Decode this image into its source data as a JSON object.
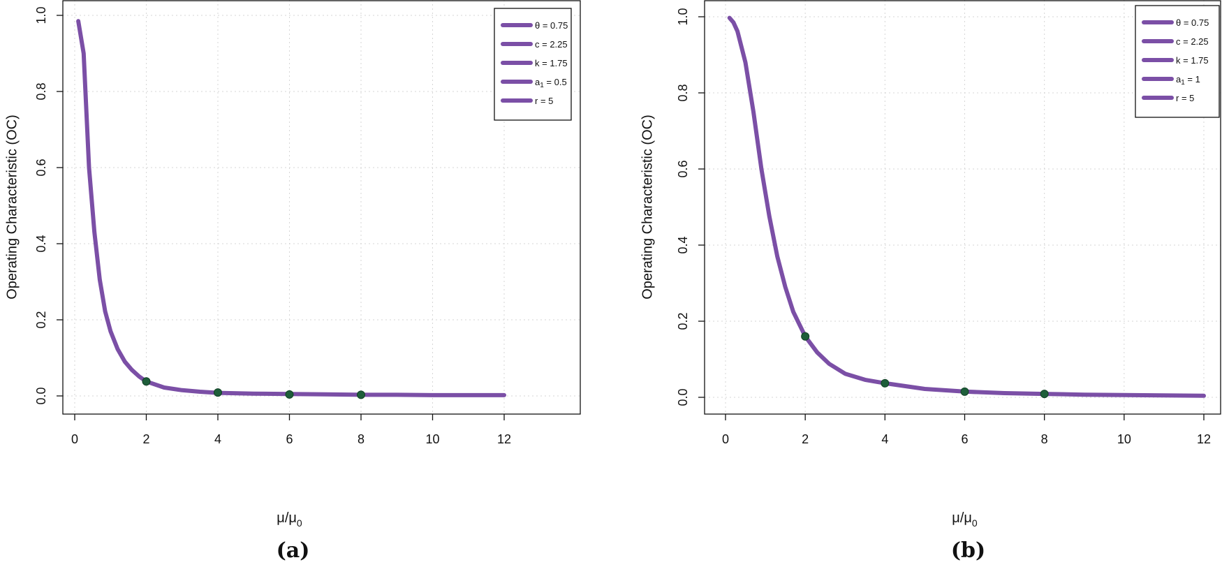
{
  "chart_data": [
    {
      "type": "line",
      "caption": "(a)",
      "xlabel": "μ/μ",
      "xlabel_sub": "0",
      "ylabel": "Operating Characteristic (OC)",
      "xlim": [
        0,
        12
      ],
      "ylim": [
        0,
        1
      ],
      "xticks": [
        "0",
        "2",
        "4",
        "6",
        "8",
        "10",
        "12"
      ],
      "yticks": [
        "0.0",
        "0.2",
        "0.4",
        "0.6",
        "0.8",
        "1.0"
      ],
      "grid": true,
      "legend_position": "top-right",
      "legend": [
        {
          "main": "θ = 0.75",
          "sub": "",
          "rest": ""
        },
        {
          "main": "c = 2.25",
          "sub": "",
          "rest": ""
        },
        {
          "main": "k = 1.75",
          "sub": "",
          "rest": ""
        },
        {
          "main": "a",
          "sub": "1",
          "rest": " = 0.5"
        },
        {
          "main": "r = 5",
          "sub": "",
          "rest": ""
        }
      ],
      "series": [
        {
          "name": "OC",
          "color": "#7b4fa6",
          "x": [
            0.1,
            0.25,
            0.4,
            0.55,
            0.7,
            0.85,
            1.0,
            1.2,
            1.4,
            1.6,
            1.8,
            2.0,
            2.5,
            3.0,
            3.5,
            4.0,
            5.0,
            6.0,
            7.0,
            8.0,
            9.0,
            10.0,
            11.0,
            12.0
          ],
          "y": [
            0.985,
            0.9,
            0.6,
            0.43,
            0.305,
            0.222,
            0.17,
            0.123,
            0.09,
            0.068,
            0.051,
            0.038,
            0.022,
            0.015,
            0.011,
            0.008,
            0.006,
            0.005,
            0.004,
            0.003,
            0.003,
            0.002,
            0.002,
            0.002
          ]
        }
      ],
      "points": [
        {
          "x": 2,
          "y": 0.038
        },
        {
          "x": 4,
          "y": 0.009
        },
        {
          "x": 6,
          "y": 0.004
        },
        {
          "x": 8,
          "y": 0.003
        }
      ],
      "point_color": "#1e5e3a"
    },
    {
      "type": "line",
      "caption": "(b)",
      "xlabel": "μ/μ",
      "xlabel_sub": "0",
      "ylabel": "Operating Characteristic (OC)",
      "xlim": [
        0,
        12
      ],
      "ylim": [
        0,
        1
      ],
      "xticks": [
        "0",
        "2",
        "4",
        "6",
        "8",
        "10",
        "12"
      ],
      "yticks": [
        "0.0",
        "0.2",
        "0.4",
        "0.6",
        "0.8",
        "1.0"
      ],
      "grid": true,
      "legend_position": "top-right",
      "legend": [
        {
          "main": "θ = 0.75",
          "sub": "",
          "rest": ""
        },
        {
          "main": "c = 2.25",
          "sub": "",
          "rest": ""
        },
        {
          "main": "k = 1.75",
          "sub": "",
          "rest": ""
        },
        {
          "main": "a",
          "sub": "1",
          "rest": " = 1"
        },
        {
          "main": "r = 5",
          "sub": "",
          "rest": ""
        }
      ],
      "series": [
        {
          "name": "OC",
          "color": "#7b4fa6",
          "x": [
            0.1,
            0.2,
            0.3,
            0.5,
            0.7,
            0.9,
            1.1,
            1.3,
            1.5,
            1.7,
            2.0,
            2.3,
            2.6,
            3.0,
            3.5,
            4.0,
            5.0,
            6.0,
            7.0,
            8.0,
            9.0,
            10.0,
            11.0,
            12.0
          ],
          "y": [
            0.997,
            0.985,
            0.962,
            0.88,
            0.75,
            0.6,
            0.475,
            0.37,
            0.29,
            0.225,
            0.16,
            0.118,
            0.088,
            0.062,
            0.046,
            0.037,
            0.022,
            0.015,
            0.011,
            0.009,
            0.007,
            0.006,
            0.005,
            0.004
          ]
        }
      ],
      "points": [
        {
          "x": 2,
          "y": 0.16
        },
        {
          "x": 4,
          "y": 0.037
        },
        {
          "x": 6,
          "y": 0.015
        },
        {
          "x": 8,
          "y": 0.009
        }
      ],
      "point_color": "#1e5e3a"
    }
  ]
}
